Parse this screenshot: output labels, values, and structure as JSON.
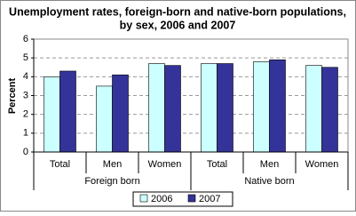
{
  "chart_data": {
    "type": "bar",
    "title": [
      "Unemployment rates,  foreign-born and native-born populations,",
      "by sex, 2006 and 2007"
    ],
    "y_label": "Percent",
    "categories": [
      "Total",
      "Men",
      "Women",
      "Total",
      "Men",
      "Women"
    ],
    "groups": [
      "Foreign born",
      "Native born"
    ],
    "series": [
      {
        "name": "2006",
        "color": "#ccffff",
        "values": [
          4.0,
          3.5,
          4.7,
          4.7,
          4.8,
          4.6
        ]
      },
      {
        "name": "2007",
        "color": "#333399",
        "values": [
          4.3,
          4.1,
          4.6,
          4.7,
          4.9,
          4.5
        ]
      }
    ],
    "ylim": [
      0,
      6
    ],
    "yticks": [
      0,
      1,
      2,
      3,
      4,
      5,
      6
    ],
    "grid": true
  }
}
